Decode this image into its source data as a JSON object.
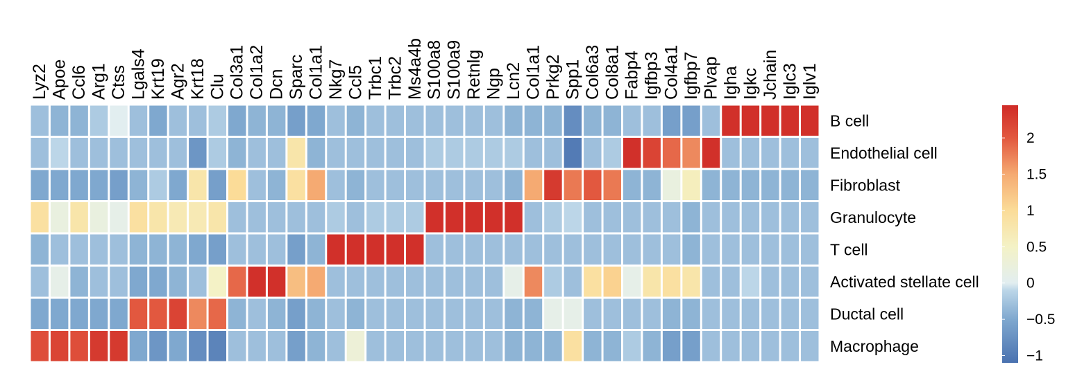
{
  "chart_data": {
    "type": "heatmap",
    "title": "",
    "xlabel": "",
    "ylabel": "",
    "columns": [
      "Lyz2",
      "Apoe",
      "Ccl6",
      "Arg1",
      "Ctss",
      "Lgals4",
      "Krt19",
      "Agr2",
      "Krt18",
      "Clu",
      "Col3a1",
      "Col1a2",
      "Dcn",
      "Sparc",
      "Col1a1",
      "Nkg7",
      "Ccl5",
      "Trbc1",
      "Trbc2",
      "Ms4a4b",
      "S100a8",
      "S100a9",
      "Retnlg",
      "Ngp",
      "Lcn2",
      "Col1a1",
      "Prkg2",
      "Spp1",
      "Col6a3",
      "Col8a1",
      "Fabp4",
      "Igfbp3",
      "Col4a1",
      "Igfbp7",
      "Plvap",
      "Igha",
      "Igkc",
      "Jchain",
      "Iglc3",
      "Iglv1"
    ],
    "rows": [
      "B cell",
      "Endothelial cell",
      "Fibroblast",
      "Granulocyte",
      "T cell",
      "Activated stellate cell",
      "Ductal cell",
      "Macrophage"
    ],
    "values": [
      [
        -0.3,
        -0.4,
        -0.4,
        -0.2,
        0.0,
        -0.3,
        -0.5,
        -0.3,
        -0.3,
        -0.2,
        -0.5,
        -0.4,
        -0.4,
        -0.6,
        -0.5,
        -0.3,
        -0.4,
        -0.3,
        -0.3,
        -0.3,
        -0.3,
        -0.3,
        -0.3,
        -0.3,
        -0.4,
        -0.4,
        -0.4,
        -0.8,
        -0.4,
        -0.4,
        -0.3,
        -0.3,
        -0.6,
        -0.6,
        -0.3,
        2.4,
        2.4,
        2.4,
        2.4,
        2.4
      ],
      [
        -0.3,
        -0.1,
        -0.3,
        -0.3,
        -0.3,
        -0.3,
        -0.3,
        -0.3,
        -0.7,
        -0.2,
        -0.4,
        -0.3,
        -0.3,
        0.8,
        -0.4,
        -0.3,
        -0.3,
        -0.3,
        -0.3,
        -0.3,
        -0.2,
        -0.2,
        -0.2,
        -0.2,
        -0.2,
        -0.3,
        -0.3,
        -1.0,
        -0.3,
        -0.2,
        2.4,
        2.2,
        1.9,
        1.7,
        2.4,
        -0.3,
        -0.3,
        -0.3,
        -0.3,
        -0.3
      ],
      [
        -0.5,
        -0.5,
        -0.5,
        -0.5,
        -0.6,
        -0.4,
        -0.2,
        -0.5,
        0.8,
        -0.6,
        1.0,
        -0.3,
        -0.4,
        0.9,
        1.5,
        -0.3,
        -0.4,
        -0.3,
        -0.3,
        -0.3,
        -0.3,
        -0.3,
        -0.3,
        -0.3,
        -0.4,
        1.5,
        2.3,
        1.8,
        2.0,
        1.8,
        -0.4,
        -0.4,
        0.2,
        0.6,
        -0.4,
        -0.4,
        -0.4,
        -0.4,
        -0.4,
        -0.4
      ],
      [
        0.9,
        0.2,
        0.8,
        0.2,
        0.1,
        0.9,
        0.8,
        0.7,
        0.7,
        0.8,
        -0.3,
        -0.3,
        -0.3,
        -0.3,
        -0.3,
        -0.2,
        -0.3,
        -0.2,
        -0.2,
        -0.2,
        2.4,
        2.4,
        2.4,
        2.4,
        2.4,
        -0.3,
        -0.2,
        -0.1,
        -0.3,
        -0.3,
        -0.3,
        -0.3,
        -0.3,
        -0.4,
        -0.3,
        -0.3,
        -0.3,
        -0.3,
        -0.3,
        -0.3
      ],
      [
        -0.4,
        -0.3,
        -0.3,
        -0.3,
        -0.3,
        -0.4,
        -0.4,
        -0.4,
        -0.5,
        -0.6,
        -0.3,
        -0.3,
        -0.3,
        -0.6,
        -0.4,
        2.4,
        2.4,
        2.4,
        2.4,
        2.4,
        -0.3,
        -0.3,
        -0.3,
        -0.3,
        -0.3,
        -0.3,
        -0.3,
        -0.3,
        -0.3,
        -0.3,
        -0.3,
        -0.3,
        -0.3,
        -0.4,
        -0.3,
        -0.3,
        -0.3,
        -0.3,
        -0.3,
        -0.3
      ],
      [
        -0.3,
        0.1,
        -0.4,
        -0.3,
        -0.3,
        -0.5,
        -0.5,
        -0.4,
        -0.3,
        0.5,
        1.9,
        2.4,
        2.4,
        1.3,
        1.5,
        -0.3,
        -0.3,
        -0.3,
        -0.3,
        -0.3,
        -0.3,
        -0.3,
        -0.3,
        -0.3,
        0.1,
        1.7,
        -0.2,
        -0.3,
        0.9,
        1.1,
        0.1,
        0.8,
        0.9,
        0.8,
        -0.3,
        -0.3,
        -0.1,
        -0.3,
        -0.3,
        -0.3
      ],
      [
        -0.5,
        -0.5,
        -0.5,
        -0.5,
        -0.5,
        2.0,
        2.0,
        2.2,
        1.7,
        1.9,
        -0.4,
        -0.3,
        -0.4,
        -0.6,
        -0.4,
        -0.3,
        -0.4,
        -0.3,
        -0.3,
        -0.3,
        -0.3,
        -0.3,
        -0.3,
        -0.3,
        -0.4,
        -0.4,
        0.1,
        0.1,
        -0.3,
        -0.3,
        -0.3,
        -0.3,
        -0.4,
        -0.4,
        -0.3,
        -0.3,
        -0.3,
        -0.3,
        -0.3,
        -0.3
      ],
      [
        2.1,
        2.2,
        2.1,
        2.3,
        2.3,
        -0.5,
        -0.7,
        -0.5,
        -0.8,
        -0.9,
        -0.3,
        -0.3,
        -0.3,
        -0.6,
        -0.4,
        -0.3,
        0.3,
        -0.3,
        -0.3,
        -0.3,
        -0.3,
        -0.3,
        -0.3,
        -0.3,
        -0.4,
        -0.4,
        -0.4,
        0.9,
        -0.4,
        -0.4,
        -0.2,
        -0.4,
        -0.6,
        -0.6,
        -0.3,
        -0.3,
        -0.3,
        -0.3,
        -0.3,
        -0.3
      ]
    ],
    "color_scale": {
      "min": -1.1,
      "max": 2.45,
      "stops": [
        {
          "value": -1.1,
          "color": "#4a72b0"
        },
        {
          "value": -0.5,
          "color": "#7fa8cf"
        },
        {
          "value": -0.1,
          "color": "#bcd6e8"
        },
        {
          "value": 0.0,
          "color": "#e2eef0"
        },
        {
          "value": 0.5,
          "color": "#f4f2c6"
        },
        {
          "value": 1.0,
          "color": "#fbdc98"
        },
        {
          "value": 1.5,
          "color": "#f5aa72"
        },
        {
          "value": 2.0,
          "color": "#e2583f"
        },
        {
          "value": 2.45,
          "color": "#cf2b27"
        }
      ]
    },
    "legend": {
      "position": "right",
      "ticks": [
        {
          "value": 2,
          "label": "2"
        },
        {
          "value": 1.5,
          "label": "1.5"
        },
        {
          "value": 1,
          "label": "1"
        },
        {
          "value": 0.5,
          "label": "0.5"
        },
        {
          "value": 0,
          "label": "0"
        },
        {
          "value": -0.5,
          "label": "−0.5"
        },
        {
          "value": -1,
          "label": "−1"
        }
      ]
    },
    "grid": true
  }
}
